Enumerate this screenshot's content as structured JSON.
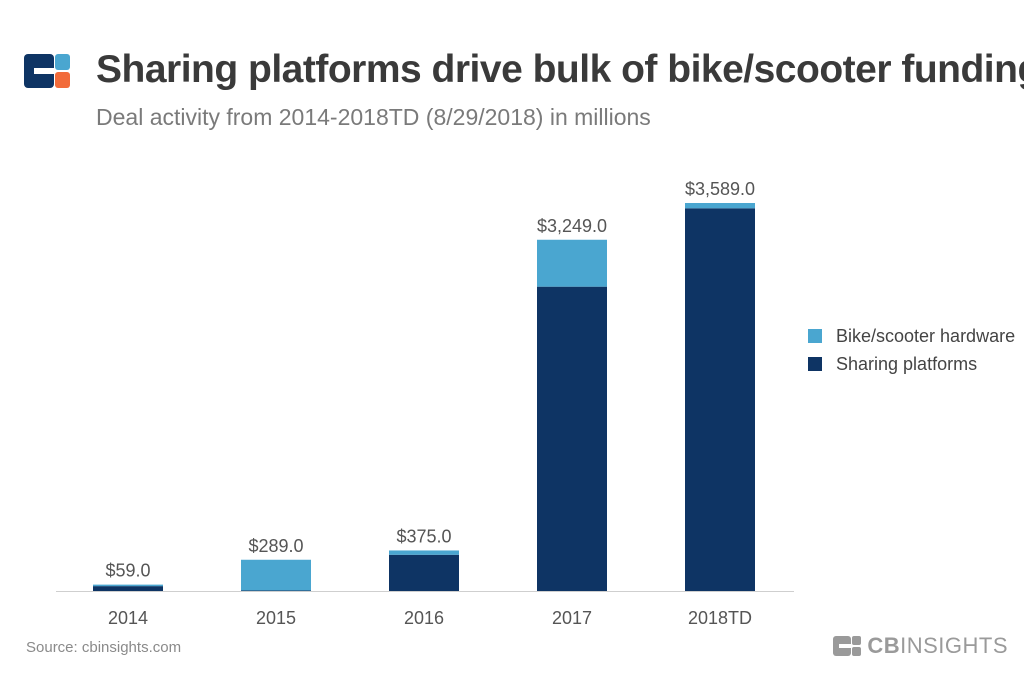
{
  "header": {
    "title": "Sharing platforms drive bulk of bike/scooter funding",
    "subtitle": "Deal activity from 2014-2018TD (8/29/2018) in millions"
  },
  "footer": {
    "source": "Source: cbinsights.com",
    "brand_bold": "CB",
    "brand_rest": "INSIGHTS"
  },
  "colors": {
    "hardware": "#4aa6d0",
    "sharing": "#0e3464",
    "axis": "#cfcfcf",
    "tick_text": "#555555",
    "label_text": "#555555",
    "logo_dark": "#0e3464",
    "logo_light": "#4aa6d0",
    "logo_accent": "#f26b3a"
  },
  "chart_data": {
    "type": "bar",
    "stacked": true,
    "categories": [
      "2014",
      "2015",
      "2016",
      "2017",
      "2018TD"
    ],
    "totals": [
      59.0,
      289.0,
      375.0,
      3249.0,
      3589.0
    ],
    "total_labels": [
      "$59.0",
      "$289.0",
      "$375.0",
      "$3,249.0",
      "$3,589.0"
    ],
    "series": [
      {
        "name": "Sharing platforms",
        "color_key": "sharing",
        "values": [
          45,
          5,
          335,
          2815,
          3540
        ]
      },
      {
        "name": "Bike/scooter hardware",
        "color_key": "hardware",
        "values": [
          14,
          284,
          40,
          434,
          49
        ]
      }
    ],
    "legend_order": [
      "Bike/scooter hardware",
      "Sharing platforms"
    ],
    "legend_position": "right",
    "ylim": [
      0,
      3589
    ],
    "grid": false,
    "y_axis_visible": false
  }
}
